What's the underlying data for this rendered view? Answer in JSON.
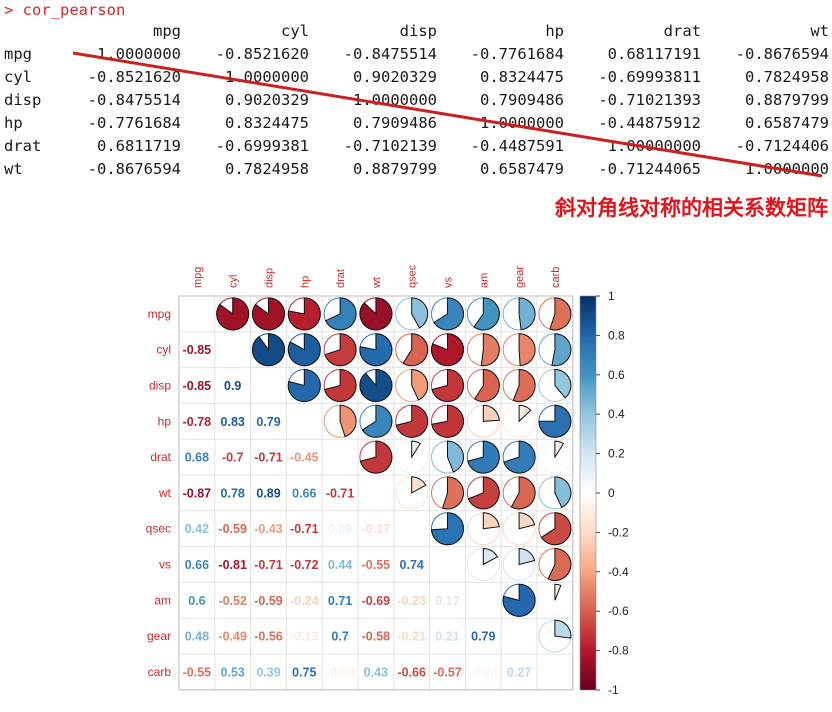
{
  "console": {
    "prompt": "> ",
    "command": "cor_pearson",
    "headers": [
      "mpg",
      "cyl",
      "disp",
      "hp",
      "drat",
      "wt"
    ],
    "rows": [
      {
        "name": "mpg",
        "cells": [
          "1.0000000",
          "-0.8521620",
          "-0.8475514",
          "-0.7761684",
          "0.68117191",
          "-0.8676594"
        ]
      },
      {
        "name": "cyl",
        "cells": [
          "-0.8521620",
          "1.0000000",
          "0.9020329",
          "0.8324475",
          "-0.69993811",
          "0.7824958"
        ]
      },
      {
        "name": "disp",
        "cells": [
          "-0.8475514",
          "0.9020329",
          "1.0000000",
          "0.7909486",
          "-0.71021393",
          "0.8879799"
        ]
      },
      {
        "name": "hp",
        "cells": [
          "-0.7761684",
          "0.8324475",
          "0.7909486",
          "1.0000000",
          "-0.44875912",
          "0.6587479"
        ]
      },
      {
        "name": "drat",
        "cells": [
          "0.6811719",
          "-0.6999381",
          "-0.7102139",
          "-0.4487591",
          "1.00000000",
          "-0.7124406"
        ]
      },
      {
        "name": "wt",
        "cells": [
          "-0.8676594",
          "0.7824958",
          "0.8879799",
          "0.6587479",
          "-0.71244065",
          "1.0000000"
        ]
      }
    ]
  },
  "annotation": "斜对角线对称的相关系数矩阵",
  "colors": {
    "console_text": "#1a1a1a",
    "prompt": "#d62828",
    "annotation": "#e0151b",
    "diag_line": "#cc2020",
    "label": "#cc2b2b"
  },
  "chart_data": {
    "type": "heatmap",
    "variables": [
      "mpg",
      "cyl",
      "disp",
      "hp",
      "drat",
      "wt",
      "qsec",
      "vs",
      "am",
      "gear",
      "carb"
    ],
    "lower_labels": [
      [],
      [
        "-0.85"
      ],
      [
        "-0.85",
        "0.9"
      ],
      [
        "-0.78",
        "0.83",
        "0.79"
      ],
      [
        "0.68",
        "-0.7",
        "-0.71",
        "-0.45"
      ],
      [
        "-0.87",
        "0.78",
        "0.89",
        "0.66",
        "-0.71"
      ],
      [
        "0.42",
        "-0.59",
        "-0.43",
        "-0.71",
        "0.09",
        "-0.17"
      ],
      [
        "0.66",
        "-0.81",
        "-0.71",
        "-0.72",
        "0.44",
        "-0.55",
        "0.74"
      ],
      [
        "0.6",
        "-0.52",
        "-0.59",
        "-0.24",
        "0.71",
        "-0.69",
        "-0.23",
        "0.17"
      ],
      [
        "0.48",
        "-0.49",
        "-0.56",
        "-0.13",
        "0.7",
        "-0.58",
        "-0.21",
        "0.21",
        "0.79"
      ],
      [
        "-0.55",
        "0.53",
        "0.39",
        "0.75",
        "-0.09",
        "0.43",
        "-0.66",
        "-0.57",
        "-0.06",
        "0.27"
      ]
    ],
    "matrix": [
      [
        1,
        -0.85,
        -0.85,
        -0.78,
        0.68,
        -0.87,
        0.42,
        0.66,
        0.6,
        0.48,
        -0.55
      ],
      [
        -0.85,
        1,
        0.9,
        0.83,
        -0.7,
        0.78,
        -0.59,
        -0.81,
        -0.52,
        -0.49,
        0.53
      ],
      [
        -0.85,
        0.9,
        1,
        0.79,
        -0.71,
        0.89,
        -0.43,
        -0.71,
        -0.59,
        -0.56,
        0.39
      ],
      [
        -0.78,
        0.83,
        0.79,
        1,
        -0.45,
        0.66,
        -0.71,
        -0.72,
        -0.24,
        -0.13,
        0.75
      ],
      [
        0.68,
        -0.7,
        -0.71,
        -0.45,
        1,
        -0.71,
        0.09,
        0.44,
        0.71,
        0.7,
        -0.09
      ],
      [
        -0.87,
        0.78,
        0.89,
        0.66,
        -0.71,
        1,
        -0.17,
        -0.55,
        -0.69,
        -0.58,
        0.43
      ],
      [
        0.42,
        -0.59,
        -0.43,
        -0.71,
        0.09,
        -0.17,
        1,
        0.74,
        -0.23,
        -0.21,
        -0.66
      ],
      [
        0.66,
        -0.81,
        -0.71,
        -0.72,
        0.44,
        -0.55,
        0.74,
        1,
        0.17,
        0.21,
        -0.57
      ],
      [
        0.6,
        -0.52,
        -0.59,
        -0.24,
        0.71,
        -0.69,
        -0.23,
        0.17,
        1,
        0.79,
        -0.06
      ],
      [
        0.48,
        -0.49,
        -0.56,
        -0.13,
        0.7,
        -0.58,
        -0.21,
        0.21,
        0.79,
        1,
        0.27
      ],
      [
        -0.55,
        0.53,
        0.39,
        0.75,
        -0.09,
        0.43,
        -0.66,
        -0.57,
        -0.06,
        0.27,
        1
      ]
    ],
    "upper": "pie",
    "lower": "number",
    "colorbar": {
      "ticks": [
        "1",
        "0.8",
        "0.6",
        "0.4",
        "0.2",
        "0",
        "-0.2",
        "-0.4",
        "-0.6",
        "-0.8",
        "-1"
      ],
      "range": [
        -1,
        1
      ]
    }
  }
}
